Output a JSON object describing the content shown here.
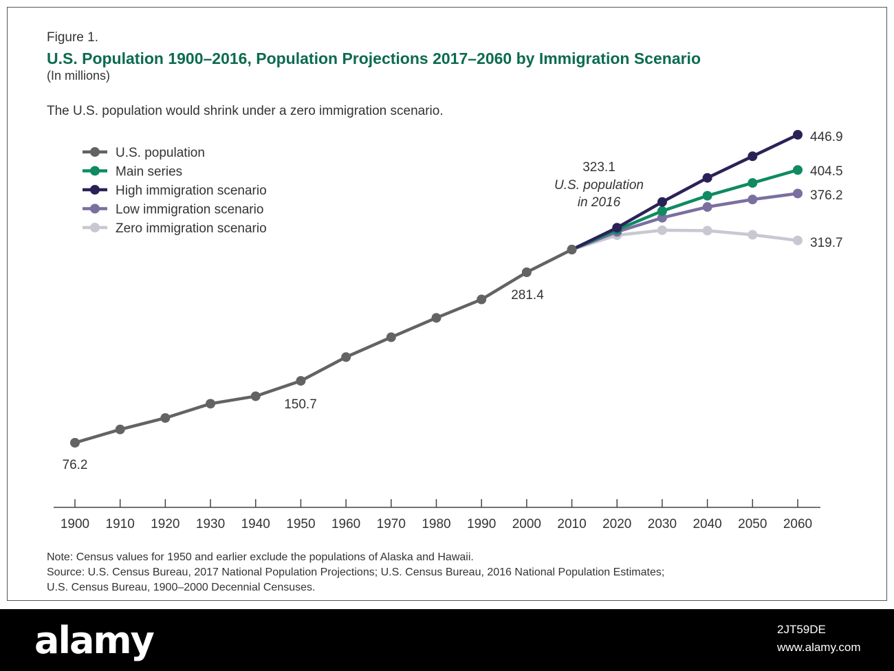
{
  "figure_label": "Figure 1.",
  "title": "U.S. Population 1900–2016, Population Projections 2017–2060 by Immigration Scenario",
  "units": "(In millions)",
  "subtitle": "The U.S. population would shrink under a zero immigration scenario.",
  "notes": {
    "note": "Note: Census values for 1950 and earlier exclude the populations of Alaska and Hawaii.",
    "source_line1": "Source: U.S. Census Bureau, 2017 National Population Projections; U.S. Census Bureau, 2016 National Population Estimates;",
    "source_line2": "U.S. Census Bureau, 1900–2000 Decennial Censuses."
  },
  "watermark": {
    "logo": "alamy",
    "image_id": "2JT59DE",
    "url": "www.alamy.com"
  },
  "chart_data": {
    "type": "line",
    "xlabel": "",
    "ylabel": "",
    "x_ticks": [
      1900,
      1910,
      1920,
      1930,
      1940,
      1950,
      1960,
      1970,
      1980,
      1990,
      2000,
      2010,
      2020,
      2030,
      2040,
      2050,
      2060
    ],
    "ylim": [
      60,
      470
    ],
    "grid": false,
    "legend_position": "top-left",
    "series": [
      {
        "name": "U.S. population",
        "color": "#636363",
        "x": [
          1900,
          1910,
          1920,
          1930,
          1940,
          1950,
          1960,
          1970,
          1980,
          1990,
          2000,
          2010
        ],
        "values": [
          76.2,
          92.2,
          106.0,
          123.2,
          132.2,
          150.7,
          179.3,
          203.2,
          226.5,
          248.7,
          281.4,
          308.7
        ]
      },
      {
        "name": "Main series",
        "color": "#0f8a63",
        "x": [
          2010,
          2020,
          2030,
          2040,
          2050,
          2060
        ],
        "values": [
          308.7,
          332.6,
          355.1,
          373.5,
          388.9,
          404.5
        ]
      },
      {
        "name": "High immigration scenario",
        "color": "#2a2257",
        "x": [
          2010,
          2020,
          2030,
          2040,
          2050,
          2060
        ],
        "values": [
          308.7,
          335.0,
          366.0,
          395.0,
          421.0,
          446.9
        ]
      },
      {
        "name": "Low immigration scenario",
        "color": "#7b6fa0",
        "x": [
          2010,
          2020,
          2030,
          2040,
          2050,
          2060
        ],
        "values": [
          308.7,
          330.0,
          347.0,
          360.0,
          369.0,
          376.2
        ]
      },
      {
        "name": "Zero immigration scenario",
        "color": "#c8c8d2",
        "x": [
          2010,
          2020,
          2030,
          2040,
          2050,
          2060
        ],
        "values": [
          308.7,
          326.0,
          332.0,
          331.5,
          326.5,
          319.7
        ]
      }
    ],
    "annotations": [
      {
        "text": "76.2",
        "x": 1900,
        "series": "U.S. population"
      },
      {
        "text": "150.7",
        "x": 1950,
        "series": "U.S. population"
      },
      {
        "text": "281.4",
        "x": 2000,
        "series": "U.S. population"
      },
      {
        "text": "323.1",
        "x": 2016
      },
      {
        "text": "U.S. population",
        "x": 2016
      },
      {
        "text": "in 2016",
        "x": 2016
      },
      {
        "text": "446.9",
        "x": 2060,
        "series": "High immigration scenario"
      },
      {
        "text": "404.5",
        "x": 2060,
        "series": "Main series"
      },
      {
        "text": "376.2",
        "x": 2060,
        "series": "Low immigration scenario"
      },
      {
        "text": "319.7",
        "x": 2060,
        "series": "Zero immigration scenario"
      }
    ]
  }
}
